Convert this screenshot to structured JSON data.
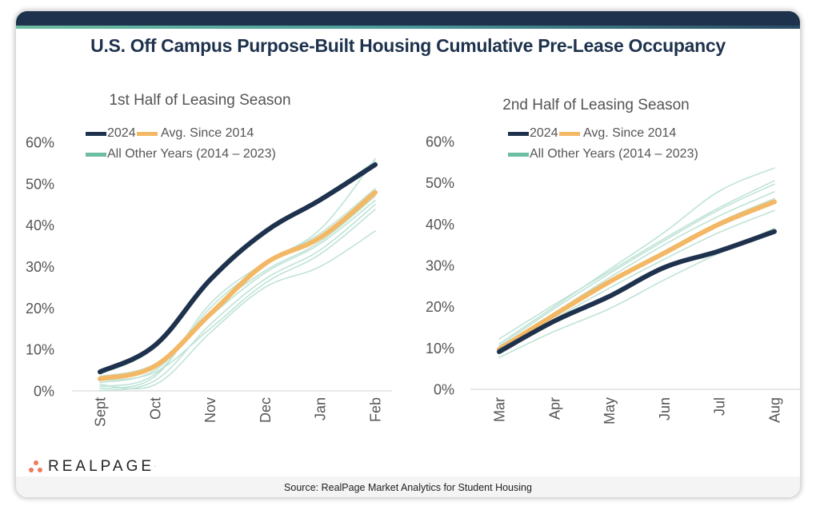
{
  "title": "U.S. Off Campus Purpose-Built Housing Cumulative Pre-Lease Occupancy",
  "source": "Source: RealPage Market Analytics for Student Housing",
  "logo": {
    "text": "REALPAGE",
    "icon": "three-dots-logo-icon",
    "color": "#f07a5a"
  },
  "colors": {
    "year2024": "#1e324d",
    "avg": "#f3b865",
    "others": "#bfe3d6",
    "others_legend": "#6dbda1",
    "header": "#1e324d"
  },
  "chart_data": [
    {
      "type": "line",
      "title": "1st Half of Leasing Season",
      "categories": [
        "Sept",
        "Oct",
        "Nov",
        "Dec",
        "Jan",
        "Feb"
      ],
      "ylim": [
        0,
        60
      ],
      "yticks": [
        "0%",
        "10%",
        "20%",
        "30%",
        "40%",
        "50%",
        "60%"
      ],
      "ytick_values": [
        0,
        10,
        20,
        30,
        40,
        50,
        60
      ],
      "grid": false,
      "legend": [
        "2024",
        "Avg. Since 2014",
        "All Other Years (2014 – 2023)"
      ],
      "legend_position": "top-left",
      "series": [
        {
          "name": "All Other Years (2014 – 2023)",
          "group": "others",
          "values": [
            0.5,
            3.5,
            21.0,
            31.0,
            39.0,
            56.0
          ]
        },
        {
          "name": "All Other Years (2014 – 2023)",
          "group": "others",
          "values": [
            1.0,
            4.0,
            20.0,
            30.5,
            38.0,
            48.8
          ]
        },
        {
          "name": "All Other Years (2014 – 2023)",
          "group": "others",
          "values": [
            2.0,
            5.0,
            19.0,
            29.0,
            36.0,
            47.0
          ]
        },
        {
          "name": "All Other Years (2014 – 2023)",
          "group": "others",
          "values": [
            3.5,
            6.5,
            18.0,
            28.5,
            35.5,
            46.0
          ]
        },
        {
          "name": "All Other Years (2014 – 2023)",
          "group": "others",
          "values": [
            0.0,
            2.5,
            16.0,
            27.0,
            34.0,
            45.0
          ]
        },
        {
          "name": "All Other Years (2014 – 2023)",
          "group": "others",
          "values": [
            2.5,
            4.5,
            15.0,
            26.0,
            33.0,
            43.8
          ]
        },
        {
          "name": "All Other Years (2014 – 2023)",
          "group": "others",
          "values": [
            1.5,
            1.5,
            14.0,
            25.0,
            30.0,
            38.6
          ]
        },
        {
          "name": "All Other Years (2014 – 2023)",
          "group": "others",
          "values": [
            4.0,
            10.5,
            27.0,
            38.0,
            46.0,
            55.5
          ]
        },
        {
          "name": "Avg. Since 2014",
          "group": "avg",
          "values": [
            2.9,
            6.0,
            18.5,
            30.7,
            37.0,
            47.9
          ]
        },
        {
          "name": "2024",
          "group": "year2024",
          "values": [
            4.6,
            11.0,
            26.8,
            38.4,
            46.1,
            54.6
          ]
        }
      ]
    },
    {
      "type": "line",
      "title": "2nd Half of Leasing Season",
      "categories": [
        "Mar",
        "Apr",
        "May",
        "Jun",
        "Jul",
        "Aug"
      ],
      "ylim": [
        0,
        60
      ],
      "yticks": [
        "0%",
        "10%",
        "20%",
        "30%",
        "40%",
        "50%",
        "60%"
      ],
      "ytick_values": [
        0,
        10,
        20,
        30,
        40,
        50,
        60
      ],
      "grid": false,
      "legend": [
        "2024",
        "Avg. Since 2014",
        "All Other Years (2014 – 2023)"
      ],
      "legend_position": "top-left",
      "series": [
        {
          "name": "All Other Years (2014 – 2023)",
          "group": "others",
          "values": [
            11.0,
            20.0,
            29.0,
            38.0,
            48.0,
            53.6
          ]
        },
        {
          "name": "All Other Years (2014 – 2023)",
          "group": "others",
          "values": [
            12.2,
            20.5,
            28.5,
            36.5,
            44.0,
            50.5
          ]
        },
        {
          "name": "All Other Years (2014 – 2023)",
          "group": "others",
          "values": [
            10.5,
            19.5,
            28.0,
            36.0,
            43.5,
            49.7
          ]
        },
        {
          "name": "All Other Years (2014 – 2023)",
          "group": "others",
          "values": [
            10.0,
            18.5,
            27.0,
            35.0,
            42.0,
            47.8
          ]
        },
        {
          "name": "All Other Years (2014 – 2023)",
          "group": "others",
          "values": [
            9.5,
            18.0,
            26.0,
            33.5,
            40.5,
            46.2
          ]
        },
        {
          "name": "All Other Years (2014 – 2023)",
          "group": "others",
          "values": [
            9.0,
            17.0,
            24.5,
            31.5,
            38.0,
            43.3
          ]
        },
        {
          "name": "All Other Years (2014 – 2023)",
          "group": "others",
          "values": [
            7.7,
            14.0,
            19.5,
            26.5,
            33.0,
            39.0
          ]
        },
        {
          "name": "Avg. Since 2014",
          "group": "avg",
          "values": [
            9.7,
            18.0,
            26.0,
            33.0,
            40.0,
            45.4
          ]
        },
        {
          "name": "2024",
          "group": "year2024",
          "values": [
            9.1,
            16.5,
            22.5,
            29.5,
            33.5,
            38.2
          ]
        }
      ]
    }
  ]
}
